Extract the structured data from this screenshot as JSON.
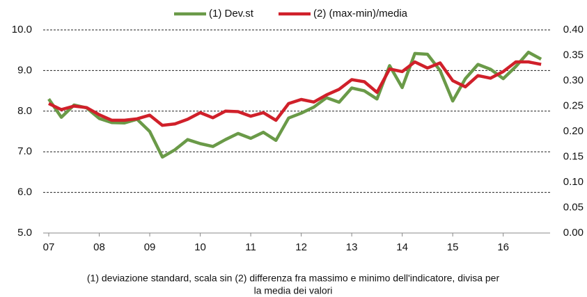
{
  "chart_data": {
    "type": "line",
    "categories": [
      "07",
      null,
      null,
      null,
      "08",
      null,
      null,
      null,
      "09",
      null,
      null,
      null,
      "10",
      null,
      null,
      null,
      "11",
      null,
      null,
      null,
      "12",
      null,
      null,
      null,
      "13",
      null,
      null,
      null,
      "14",
      null,
      null,
      null,
      "15",
      null,
      null,
      null,
      "16",
      null,
      null,
      null
    ],
    "series": [
      {
        "name": "(1) Dev.st",
        "color": "#6a9a48",
        "axis": "y",
        "values": [
          8.3,
          7.85,
          8.15,
          8.08,
          7.82,
          7.72,
          7.71,
          7.8,
          7.5,
          6.87,
          7.05,
          7.3,
          7.2,
          7.13,
          7.3,
          7.45,
          7.33,
          7.48,
          7.28,
          7.83,
          7.95,
          8.1,
          8.33,
          8.22,
          8.57,
          8.5,
          8.3,
          9.12,
          8.58,
          9.42,
          9.4,
          9.0,
          8.25,
          8.8,
          9.15,
          9.03,
          8.8,
          9.1,
          9.45,
          9.28
        ]
      },
      {
        "name": "(2) (max-min)/media",
        "color": "#d0202a",
        "axis": "y2",
        "values": [
          0.255,
          0.243,
          0.25,
          0.247,
          0.233,
          0.222,
          0.222,
          0.225,
          0.232,
          0.212,
          0.215,
          0.224,
          0.237,
          0.227,
          0.24,
          0.239,
          0.23,
          0.237,
          0.222,
          0.255,
          0.263,
          0.258,
          0.272,
          0.283,
          0.302,
          0.298,
          0.277,
          0.323,
          0.318,
          0.337,
          0.325,
          0.335,
          0.3,
          0.288,
          0.31,
          0.305,
          0.318,
          0.337,
          0.337,
          0.332
        ]
      }
    ],
    "ylim": [
      5,
      10
    ],
    "yticks": [
      {
        "value": 5,
        "label": "5.0"
      },
      {
        "value": 6,
        "label": "6.0"
      },
      {
        "value": 7,
        "label": "7.0"
      },
      {
        "value": 8,
        "label": "8.0"
      },
      {
        "value": 9,
        "label": "9.0"
      },
      {
        "value": 10,
        "label": "10.0"
      }
    ],
    "y2lim": [
      0,
      0.4
    ],
    "y2ticks": [
      {
        "value": 0,
        "label": "0.00"
      },
      0.05,
      {
        "value": 0.1,
        "label": "0.10"
      },
      0.15,
      {
        "value": 0.2,
        "label": "0.20"
      },
      0.25,
      {
        "value": 0.3,
        "label": "0.30"
      },
      0.35,
      {
        "value": 0.4,
        "label": "0.40"
      }
    ],
    "grid": true,
    "legend": "top",
    "caption": [
      "(1) deviazione standard, scala sin (2) differenza fra massimo e minimo dell'indicatore, divisa per",
      "la media dei valori"
    ]
  }
}
